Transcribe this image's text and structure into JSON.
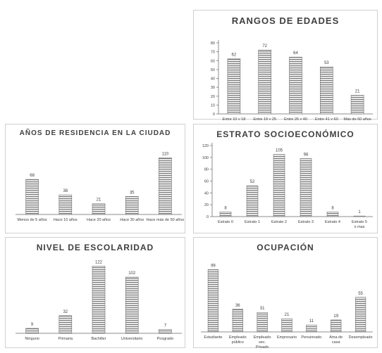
{
  "chart_data": [
    {
      "type": "bar",
      "title": "RANGOS DE EDADES",
      "categories": [
        "Entre 10 y 18 años",
        "Entre 19 y 25 años",
        "Entre 26 y 40 años",
        "Entre 41 y 60 años",
        "Más de 60 años"
      ],
      "values": [
        62,
        72,
        64,
        53,
        21
      ],
      "ylim": [
        0,
        80
      ],
      "yticks": [
        0,
        10,
        20,
        30,
        40,
        50,
        60,
        70,
        80
      ],
      "y_axis": true,
      "data_labels": true
    },
    {
      "type": "bar",
      "title": "AÑOS DE RESIDENCIA EN LA CIUDAD",
      "categories": [
        "Menos de 5 años",
        "Hace 10 años",
        "Hace 20 años",
        "Hace 30 años",
        "Hace más de 50 años"
      ],
      "values": [
        68,
        38,
        21,
        35,
        110
      ],
      "ylim": [
        0,
        120
      ],
      "y_axis": false,
      "data_labels": true
    },
    {
      "type": "bar",
      "title": "ESTRATO SOCIOECONÓMICO",
      "categories": [
        "Estrato 0",
        "Estrato 1",
        "Estrato 2",
        "Estrato 3",
        "Estrato 4",
        "Estrato 5 o mas"
      ],
      "values": [
        8,
        52,
        105,
        98,
        8,
        1
      ],
      "ylim": [
        0,
        120
      ],
      "yticks": [
        0,
        20,
        40,
        60,
        80,
        100,
        120
      ],
      "y_axis": true,
      "data_labels": true
    },
    {
      "type": "bar",
      "title": "NIVEL DE ESCOLARIDAD",
      "categories": [
        "Ninguno",
        "Primaria",
        "Bachiller",
        "Universitario",
        "Posgrado"
      ],
      "values": [
        9,
        32,
        122,
        102,
        7
      ],
      "ylim": [
        0,
        125
      ],
      "y_axis": false,
      "data_labels": true
    },
    {
      "type": "bar",
      "title": "OCUPACIÓN",
      "categories": [
        "Estudiante",
        "Empleado público",
        "Empleado sec. Privado",
        "Empresario",
        "Pensionado",
        "Ama de casa",
        "Desempleado"
      ],
      "values": [
        99,
        36,
        31,
        21,
        11,
        19,
        55
      ],
      "ylim": [
        0,
        105
      ],
      "y_axis": false,
      "data_labels": true
    }
  ]
}
